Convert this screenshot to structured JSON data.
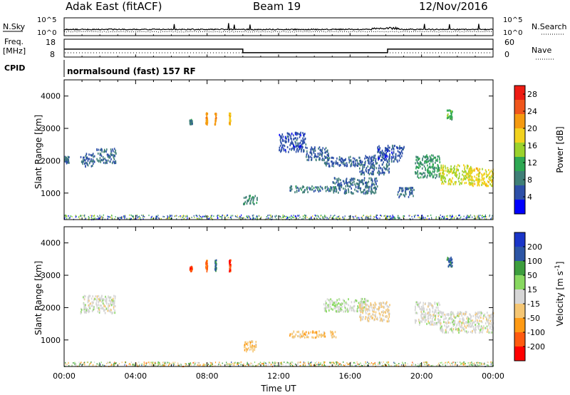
{
  "header": {
    "station": "Adak East (fitACF)",
    "beam": "Beam 19",
    "date": "12/Nov/2016"
  },
  "top_panels": {
    "nsky": {
      "label": "N.Sky",
      "tick_top": "10^5",
      "tick_bottom": "10^0",
      "right_label": "N.Search",
      "right_tick_top": "10^5",
      "right_tick_bottom": "10^0"
    },
    "freq": {
      "label_line1": "Freq.",
      "label_line2": "[MHz]",
      "tick_top": "18",
      "tick_bottom": "8",
      "right_label": "Nave",
      "right_tick_top": "60",
      "right_tick_bottom": "0",
      "steps": [
        {
          "from_hour": 0,
          "to_hour": 10.0,
          "mhz": 12.6
        },
        {
          "from_hour": 10.0,
          "to_hour": 18.1,
          "mhz": 10.3
        },
        {
          "from_hour": 18.1,
          "to_hour": 24,
          "mhz": 12.6
        }
      ]
    },
    "cpid": {
      "label": "CPID",
      "text": "normalsound (fast) 157 RF"
    }
  },
  "colors": {
    "power": [
      "#0000ff",
      "#2d4fa8",
      "#3f7f77",
      "#2ea853",
      "#9bd22c",
      "#f2d21e",
      "#f59a10",
      "#f0561c",
      "#ee1c14"
    ],
    "velocity": [
      "#ff0000",
      "#ff5a0f",
      "#ff9a14",
      "#f5c673",
      "#d6d6d6",
      "#88d860",
      "#3d9e3d",
      "#2c55a5",
      "#1a35c8"
    ]
  },
  "chart_data": [
    {
      "type": "heatmap",
      "name": "power",
      "xlabel": "",
      "ylabel": "Slant Range [km]",
      "xlim": [
        0,
        24
      ],
      "ylim": [
        180,
        4500
      ],
      "yticks": [
        "1000",
        "2000",
        "3000",
        "4000"
      ],
      "colorbar": {
        "label": "Power [dB]",
        "ticks": [
          "4",
          "8",
          "12",
          "16",
          "20",
          "24",
          "28"
        ],
        "range": [
          0,
          30
        ]
      },
      "regions": [
        {
          "t0": 0.0,
          "t1": 0.25,
          "r0": 1950,
          "r1": 2150,
          "v": 6
        },
        {
          "t0": 0.9,
          "t1": 1.7,
          "r0": 1850,
          "r1": 2250,
          "v": 6
        },
        {
          "t0": 1.8,
          "t1": 2.9,
          "r0": 1950,
          "r1": 2400,
          "v": 7
        },
        {
          "t0": 7.0,
          "t1": 7.15,
          "r0": 3150,
          "r1": 3300,
          "v": 8
        },
        {
          "t0": 7.9,
          "t1": 8.0,
          "r0": 3150,
          "r1": 3500,
          "v": 22
        },
        {
          "t0": 8.4,
          "t1": 8.5,
          "r0": 3150,
          "r1": 3500,
          "v": 22
        },
        {
          "t0": 9.2,
          "t1": 9.3,
          "r0": 3150,
          "r1": 3500,
          "v": 20
        },
        {
          "t0": 10.0,
          "t1": 10.8,
          "r0": 680,
          "r1": 950,
          "v": 9
        },
        {
          "t0": 12.0,
          "t1": 13.5,
          "r0": 2300,
          "r1": 2900,
          "v": 5
        },
        {
          "t0": 13.5,
          "t1": 14.8,
          "r0": 2050,
          "r1": 2450,
          "v": 6
        },
        {
          "t0": 14.5,
          "t1": 16.5,
          "r0": 1850,
          "r1": 2150,
          "v": 6
        },
        {
          "t0": 12.6,
          "t1": 15.2,
          "r0": 1050,
          "r1": 1250,
          "v": 8
        },
        {
          "t0": 15.0,
          "t1": 17.5,
          "r0": 1000,
          "r1": 1500,
          "v": 7
        },
        {
          "t0": 16.5,
          "t1": 18.2,
          "r0": 1600,
          "r1": 2200,
          "v": 6
        },
        {
          "t0": 17.5,
          "t1": 19.0,
          "r0": 2000,
          "r1": 2500,
          "v": 5
        },
        {
          "t0": 18.6,
          "t1": 19.6,
          "r0": 900,
          "r1": 1200,
          "v": 6
        },
        {
          "t0": 19.6,
          "t1": 21.0,
          "r0": 1500,
          "r1": 2200,
          "v": 10
        },
        {
          "t0": 21.0,
          "t1": 22.8,
          "r0": 1300,
          "r1": 1900,
          "v": 16
        },
        {
          "t0": 22.5,
          "t1": 24.0,
          "r0": 1250,
          "r1": 1800,
          "v": 18
        },
        {
          "t0": 21.4,
          "t1": 21.7,
          "r0": 3300,
          "r1": 3600,
          "v": 12
        }
      ]
    },
    {
      "type": "heatmap",
      "name": "velocity",
      "xlabel": "Time UT",
      "ylabel": "Slant Range [km]",
      "xlim": [
        0,
        24
      ],
      "xticks": [
        "00:00",
        "04:00",
        "08:00",
        "12:00",
        "16:00",
        "20:00",
        "00:00"
      ],
      "ylim": [
        180,
        4500
      ],
      "yticks": [
        "1000",
        "2000",
        "3000",
        "4000"
      ],
      "colorbar": {
        "label": "Velocity [m s^-1]",
        "ticks": [
          "-200",
          "-100",
          "-50",
          "-15",
          "15",
          "50",
          "100",
          "200"
        ],
        "range": [
          -250,
          250
        ]
      },
      "regions": [
        {
          "t0": 0.9,
          "t1": 2.9,
          "r0": 1850,
          "r1": 2400,
          "v": 0
        },
        {
          "t0": 7.0,
          "t1": 7.15,
          "r0": 3150,
          "r1": 3300,
          "v": -200
        },
        {
          "t0": 7.9,
          "t1": 8.0,
          "r0": 3150,
          "r1": 3500,
          "v": -150
        },
        {
          "t0": 8.4,
          "t1": 8.5,
          "r0": 3150,
          "r1": 3500,
          "v": 150
        },
        {
          "t0": 9.2,
          "t1": 9.3,
          "r0": 3150,
          "r1": 3500,
          "v": -200
        },
        {
          "t0": 10.0,
          "t1": 10.8,
          "r0": 680,
          "r1": 1000,
          "v": -60
        },
        {
          "t0": 12.6,
          "t1": 15.2,
          "r0": 1100,
          "r1": 1300,
          "v": -60
        },
        {
          "t0": 14.5,
          "t1": 17.0,
          "r0": 1900,
          "r1": 2300,
          "v": 20
        },
        {
          "t0": 16.5,
          "t1": 18.2,
          "r0": 1600,
          "r1": 2200,
          "v": -30
        },
        {
          "t0": 19.6,
          "t1": 21.0,
          "r0": 1500,
          "r1": 2200,
          "v": 0
        },
        {
          "t0": 21.0,
          "t1": 24.0,
          "r0": 1250,
          "r1": 1900,
          "v": 0
        },
        {
          "t0": 21.4,
          "t1": 21.7,
          "r0": 3300,
          "r1": 3600,
          "v": 150
        }
      ]
    }
  ]
}
